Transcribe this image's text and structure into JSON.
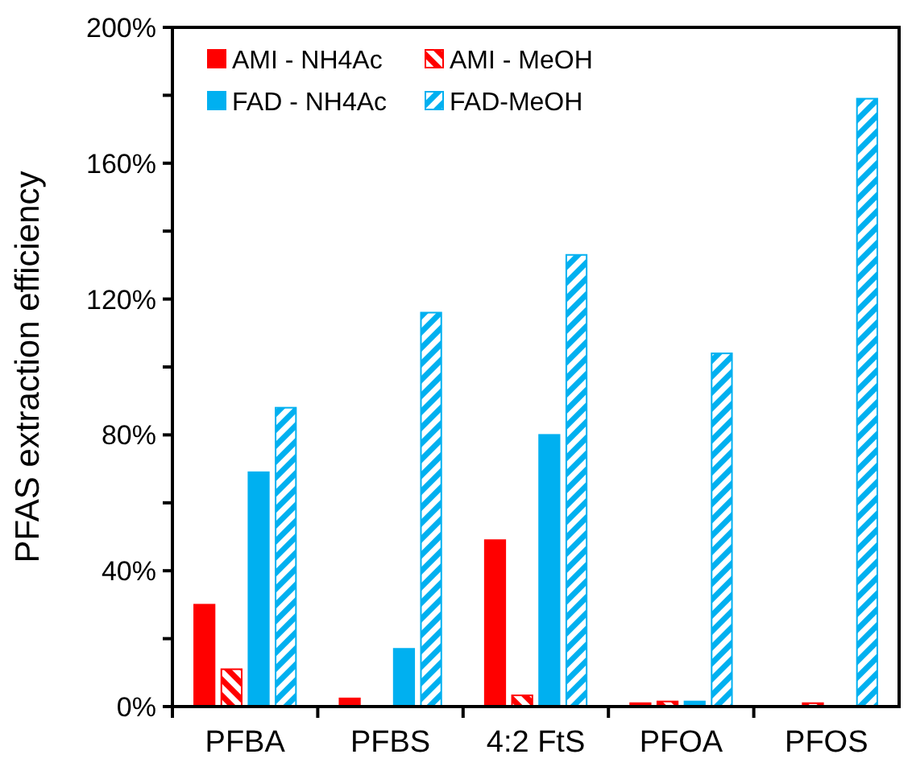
{
  "chart_data": {
    "type": "bar",
    "ylabel": "PFAS extraction efficiency",
    "categories": [
      "PFBA",
      "PFBS",
      "4:2 FtS",
      "PFOA",
      "PFOS"
    ],
    "series": [
      {
        "name": "AMI - NH4Ac",
        "color": "#ff0000",
        "values": [
          30,
          2.4,
          49,
          1,
          null
        ]
      },
      {
        "name": "AMI - MeOH",
        "color": "#ff0000",
        "values": [
          11,
          0,
          3.3,
          1.5,
          1
        ]
      },
      {
        "name": "FAD - NH4Ac",
        "color": "#00b0f0",
        "values": [
          69,
          17,
          80,
          1.5,
          null
        ]
      },
      {
        "name": "FAD-MeOH",
        "color": "#00b0f0",
        "values": [
          88,
          116,
          133,
          104,
          179
        ]
      }
    ],
    "ylim": [
      0,
      200
    ],
    "yticks": [
      {
        "value": 0,
        "label": "0%"
      },
      {
        "value": 20,
        "label": null
      },
      {
        "value": 40,
        "label": "40%"
      },
      {
        "value": 60,
        "label": null
      },
      {
        "value": 80,
        "label": "80%"
      },
      {
        "value": 100,
        "label": null
      },
      {
        "value": 120,
        "label": "120%"
      },
      {
        "value": 140,
        "label": null
      },
      {
        "value": 160,
        "label": "160%"
      },
      {
        "value": 180,
        "label": null
      },
      {
        "value": 200,
        "label": "200%"
      }
    ],
    "grid": false,
    "legend": "top left"
  }
}
